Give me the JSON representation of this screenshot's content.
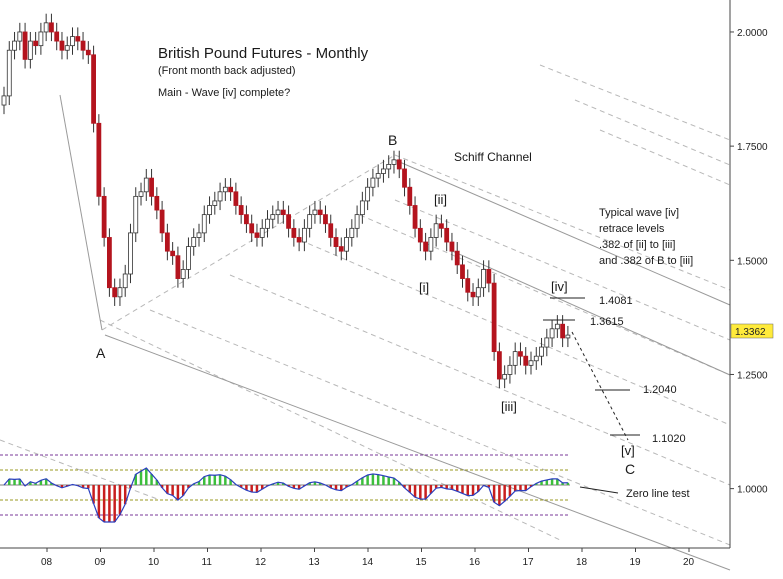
{
  "chart_data": {
    "type": "candlestick",
    "title": "British Pound Futures - Monthly",
    "subtitle": "(Front month back adjusted)",
    "scenario": "Main - Wave [iv] complete?",
    "x_ticks": [
      "08",
      "09",
      "10",
      "11",
      "12",
      "13",
      "14",
      "15",
      "16",
      "17",
      "18",
      "19",
      "20"
    ],
    "y_ticks": [
      "2.0000",
      "1.7500",
      "1.5000",
      "1.2500",
      "1.0000"
    ],
    "y_tick_values": [
      2.0,
      1.75,
      1.5,
      1.25,
      1.0
    ],
    "ylim": [
      0.87,
      2.07
    ],
    "last_price": "1.3362",
    "last_price_value": 1.3362,
    "up_color": "#3a3a3a",
    "down_color": "#b4141e",
    "oscillator_up_color": "#3cbe3c",
    "oscillator_down_color": "#c81e1e",
    "series": [
      {
        "name": "price",
        "closes": [
          1.86,
          1.96,
          1.98,
          2.0,
          1.94,
          1.98,
          1.97,
          2.0,
          2.02,
          2.0,
          1.98,
          1.96,
          1.97,
          1.99,
          1.98,
          1.96,
          1.95,
          1.8,
          1.64,
          1.55,
          1.44,
          1.42,
          1.44,
          1.47,
          1.56,
          1.64,
          1.65,
          1.68,
          1.64,
          1.61,
          1.56,
          1.52,
          1.51,
          1.46,
          1.48,
          1.53,
          1.55,
          1.56,
          1.6,
          1.62,
          1.63,
          1.65,
          1.66,
          1.65,
          1.62,
          1.6,
          1.58,
          1.56,
          1.55,
          1.57,
          1.59,
          1.6,
          1.61,
          1.6,
          1.57,
          1.55,
          1.54,
          1.57,
          1.6,
          1.61,
          1.6,
          1.58,
          1.55,
          1.53,
          1.52,
          1.55,
          1.57,
          1.6,
          1.63,
          1.66,
          1.68,
          1.69,
          1.7,
          1.71,
          1.72,
          1.7,
          1.66,
          1.62,
          1.57,
          1.54,
          1.52,
          1.55,
          1.58,
          1.57,
          1.54,
          1.52,
          1.49,
          1.46,
          1.43,
          1.42,
          1.44,
          1.48,
          1.45,
          1.3,
          1.24,
          1.25,
          1.27,
          1.3,
          1.29,
          1.27,
          1.28,
          1.29,
          1.31,
          1.33,
          1.35,
          1.36,
          1.33,
          1.3362
        ]
      },
      {
        "name": "oscillator",
        "values": []
      }
    ],
    "annotations": [
      {
        "text": "A",
        "x": 2009.0,
        "y": 1.36
      },
      {
        "text": "B",
        "x": 2014.55,
        "y": 1.72
      },
      {
        "text": "[i]",
        "x": 2015.1,
        "y": 1.47
      },
      {
        "text": "[ii]",
        "x": 2015.5,
        "y": 1.62
      },
      {
        "text": "[iii]",
        "x": 2016.9,
        "y": 1.21
      },
      {
        "text": "[iv]",
        "x": 2017.75,
        "y": 1.38
      },
      {
        "text": "[v]",
        "x": 2018.8,
        "y": 1.07
      },
      {
        "text": "C",
        "x": 2018.8,
        "y": 1.03
      },
      {
        "text": "Schiff Channel",
        "x": 2015.8,
        "y": 1.72
      },
      {
        "text": "Typical wave [iv]",
        "x": 2018.35,
        "y": 1.58
      },
      {
        "text": "retrace levels",
        "x": 2018.35,
        "y": 1.55
      },
      {
        "text": ".382 of [ii] to [iii]",
        "x": 2018.35,
        "y": 1.52
      },
      {
        "text": "and .382 of B to [iii]",
        "x": 2018.35,
        "y": 1.49
      },
      {
        "text": "1.4081",
        "x": 2018.35,
        "y": 1.405
      },
      {
        "text": "1.3615",
        "x": 2018.2,
        "y": 1.36
      },
      {
        "text": "1.2040",
        "x": 2019.25,
        "y": 1.205
      },
      {
        "text": "1.1020",
        "x": 2019.4,
        "y": 1.1
      },
      {
        "text": "Zero line test",
        "x": 2018.8,
        "y": 0.985
      }
    ],
    "levels": [
      1.4081,
      1.3615,
      1.204,
      1.102
    ],
    "grid": false,
    "legend": "none"
  }
}
